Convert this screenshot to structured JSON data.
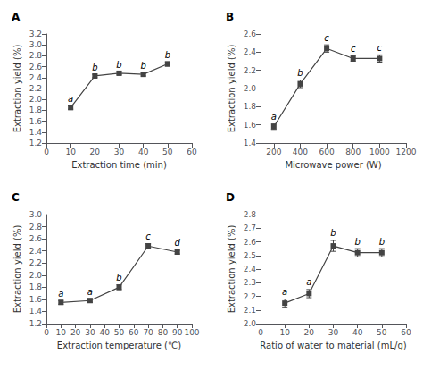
{
  "chart_data": [
    {
      "type": "line",
      "title": "A",
      "xlabel": "Extraction time (min)",
      "ylabel": "Extraction yield (%)",
      "x": [
        10,
        20,
        30,
        40,
        50
      ],
      "values": [
        1.85,
        2.43,
        2.48,
        2.46,
        2.65
      ],
      "yerr": [
        0.03,
        0.03,
        0.03,
        0.03,
        0.04
      ],
      "annotations": [
        "a",
        "b",
        "b",
        "b",
        "b"
      ],
      "color": "#444444",
      "marker": "square",
      "line_style": "solid",
      "grid": false,
      "xlim": [
        0,
        60
      ],
      "ylim": [
        1.2,
        3.2
      ],
      "xticks": [
        0,
        10,
        20,
        30,
        40,
        50,
        60
      ],
      "yticks": [
        1.2,
        1.4,
        1.6,
        1.8,
        {
          "value": 2.0,
          "label": "2.0"
        },
        2.2,
        2.4,
        2.6,
        2.8,
        {
          "value": 3.0,
          "label": "3.0"
        },
        3.2
      ]
    },
    {
      "type": "line",
      "title": "B",
      "xlabel": "Microwave power (W)",
      "ylabel": "Extraction yield (%)",
      "x": [
        200,
        400,
        600,
        800,
        1000
      ],
      "values": [
        1.58,
        2.05,
        2.44,
        2.33,
        2.33
      ],
      "yerr": [
        0.03,
        0.04,
        0.04,
        0.03,
        0.04
      ],
      "annotations": [
        "a",
        "b",
        "c",
        "c",
        "c"
      ],
      "color": "#444444",
      "marker": "square",
      "line_style": "solid",
      "grid": false,
      "xlim": [
        100,
        1200
      ],
      "ylim": [
        1.4,
        2.6
      ],
      "xticks": [
        200,
        400,
        600,
        800,
        1000,
        1200
      ],
      "yticks": [
        1.4,
        1.6,
        1.8,
        {
          "value": 2.0,
          "label": "2.0"
        },
        2.2,
        2.4,
        2.6
      ]
    },
    {
      "type": "line",
      "title": "C",
      "xlabel": "Extraction temperature (℃)",
      "ylabel": "Extraction yield (%)",
      "x": [
        10,
        30,
        50,
        70,
        90
      ],
      "values": [
        1.55,
        1.58,
        1.8,
        2.48,
        2.38
      ],
      "yerr": [
        0.03,
        0.03,
        0.04,
        0.04,
        0.03
      ],
      "annotations": [
        "a",
        "a",
        "b",
        "c",
        "d"
      ],
      "color": "#444444",
      "marker": "square",
      "line_style": "solid",
      "grid": false,
      "xlim": [
        0,
        100
      ],
      "ylim": [
        1.2,
        3.0
      ],
      "xticks": [
        0,
        10,
        20,
        30,
        40,
        50,
        60,
        70,
        80,
        90,
        100
      ],
      "yticks": [
        1.2,
        1.4,
        1.6,
        1.8,
        {
          "value": 2.0,
          "label": "2.0"
        },
        2.2,
        2.4,
        2.6,
        2.8,
        {
          "value": 3.0,
          "label": "3.0"
        }
      ]
    },
    {
      "type": "line",
      "title": "D",
      "xlabel": "Ratio of water to material (mL/g)",
      "ylabel": "Extraction yield (%)",
      "x": [
        10,
        20,
        30,
        40,
        50
      ],
      "values": [
        2.15,
        2.22,
        2.57,
        2.52,
        2.52
      ],
      "yerr": [
        0.03,
        0.03,
        0.04,
        0.03,
        0.03
      ],
      "annotations": [
        "a",
        "a",
        "b",
        "b",
        "b"
      ],
      "color": "#444444",
      "marker": "square",
      "line_style": "solid",
      "grid": false,
      "xlim": [
        0,
        60
      ],
      "ylim": [
        2.0,
        2.8
      ],
      "xticks": [
        0,
        10,
        20,
        30,
        40,
        50,
        60
      ],
      "yticks": [
        {
          "value": 2.0,
          "label": "2.0"
        },
        2.1,
        2.2,
        2.3,
        2.4,
        2.5,
        2.6,
        2.7,
        2.8
      ]
    }
  ]
}
